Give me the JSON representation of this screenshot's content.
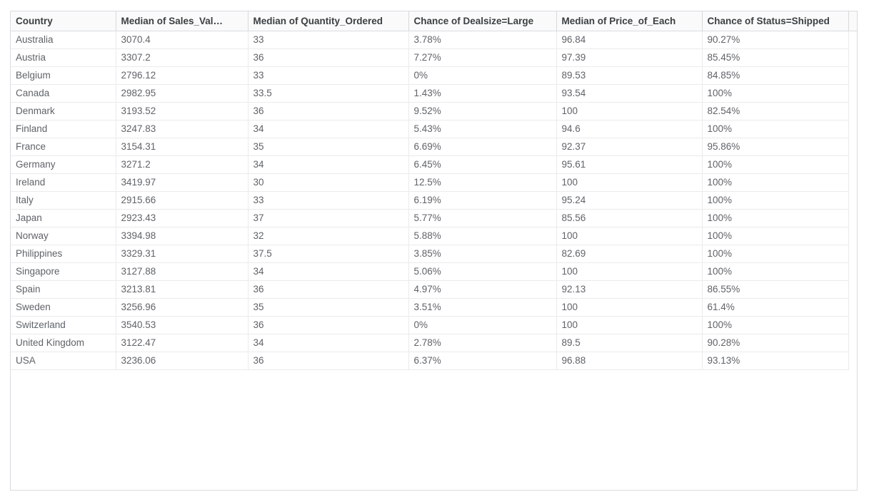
{
  "chart_data": {
    "type": "table",
    "columns": [
      "Country",
      "Median of Sales_Val…",
      "Median of Quantity_Ordered",
      "Chance of Dealsize=Large",
      "Median of Price_of_Each",
      "Chance of Status=Shipped"
    ],
    "rows": [
      [
        "Australia",
        "3070.4",
        "33",
        "3.78%",
        "96.84",
        "90.27%"
      ],
      [
        "Austria",
        "3307.2",
        "36",
        "7.27%",
        "97.39",
        "85.45%"
      ],
      [
        "Belgium",
        "2796.12",
        "33",
        "0%",
        "89.53",
        "84.85%"
      ],
      [
        "Canada",
        "2982.95",
        "33.5",
        "1.43%",
        "93.54",
        "100%"
      ],
      [
        "Denmark",
        "3193.52",
        "36",
        "9.52%",
        "100",
        "82.54%"
      ],
      [
        "Finland",
        "3247.83",
        "34",
        "5.43%",
        "94.6",
        "100%"
      ],
      [
        "France",
        "3154.31",
        "35",
        "6.69%",
        "92.37",
        "95.86%"
      ],
      [
        "Germany",
        "3271.2",
        "34",
        "6.45%",
        "95.61",
        "100%"
      ],
      [
        "Ireland",
        "3419.97",
        "30",
        "12.5%",
        "100",
        "100%"
      ],
      [
        "Italy",
        "2915.66",
        "33",
        "6.19%",
        "95.24",
        "100%"
      ],
      [
        "Japan",
        "2923.43",
        "37",
        "5.77%",
        "85.56",
        "100%"
      ],
      [
        "Norway",
        "3394.98",
        "32",
        "5.88%",
        "100",
        "100%"
      ],
      [
        "Philippines",
        "3329.31",
        "37.5",
        "3.85%",
        "82.69",
        "100%"
      ],
      [
        "Singapore",
        "3127.88",
        "34",
        "5.06%",
        "100",
        "100%"
      ],
      [
        "Spain",
        "3213.81",
        "36",
        "4.97%",
        "92.13",
        "86.55%"
      ],
      [
        "Sweden",
        "3256.96",
        "35",
        "3.51%",
        "100",
        "61.4%"
      ],
      [
        "Switzerland",
        "3540.53",
        "36",
        "0%",
        "100",
        "100%"
      ],
      [
        "United Kingdom",
        "3122.47",
        "34",
        "2.78%",
        "89.5",
        "90.28%"
      ],
      [
        "USA",
        "3236.06",
        "36",
        "6.37%",
        "96.88",
        "93.13%"
      ]
    ]
  },
  "colors": {
    "card_border": "#dadce0",
    "header_bg": "#fafafa",
    "header_text": "#3c4043",
    "body_text": "#5f6368",
    "header_divider": "#d9d9d9",
    "row_divider": "#ebebeb"
  }
}
